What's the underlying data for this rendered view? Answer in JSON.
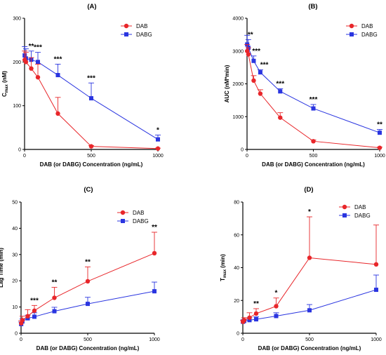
{
  "colors": {
    "DAB": "#e8262a",
    "DABG": "#2a35e0"
  },
  "chart_data": [
    {
      "panel": "(A)",
      "type": "line",
      "ylabel_main": "C",
      "ylabel_sub": "max",
      "ylabel_unit": " (nM)",
      "xlabel": "DAB (or DABG) Concentration (ng/mL)",
      "xlim": [
        0,
        1000
      ],
      "ylim": [
        0,
        300
      ],
      "xticks": [
        0,
        500,
        1000
      ],
      "yticks": [
        0,
        100,
        200,
        300
      ],
      "legend": "top-right",
      "series": [
        {
          "name": "DAB",
          "marker": "circle",
          "x": [
            1,
            10,
            50,
            100,
            250,
            500,
            1000
          ],
          "y": [
            205,
            200,
            185,
            165,
            82,
            7,
            2
          ],
          "err": [
            20,
            22,
            25,
            30,
            37,
            2,
            1
          ]
        },
        {
          "name": "DABG",
          "marker": "square",
          "x": [
            1,
            10,
            50,
            100,
            250,
            500,
            1000
          ],
          "y": [
            215,
            208,
            205,
            200,
            170,
            117,
            23
          ],
          "err": [
            20,
            22,
            20,
            22,
            25,
            35,
            10
          ]
        }
      ],
      "annotations": [
        {
          "x": 50,
          "text": "**"
        },
        {
          "x": 100,
          "text": "***"
        },
        {
          "x": 250,
          "text": "***"
        },
        {
          "x": 500,
          "text": "***"
        },
        {
          "x": 1000,
          "text": "*"
        }
      ]
    },
    {
      "panel": "(B)",
      "type": "line",
      "ylabel_main": "AUC (nM*min)",
      "ylabel_sub": "",
      "ylabel_unit": "",
      "xlabel": "DAB (or DABG) Concentration (ng/mL)",
      "xlim": [
        0,
        1000
      ],
      "ylim": [
        0,
        4000
      ],
      "xticks": [
        0,
        500,
        1000
      ],
      "yticks": [
        0,
        1000,
        2000,
        3000,
        4000
      ],
      "legend": "top-right",
      "series": [
        {
          "name": "DAB",
          "marker": "circle",
          "x": [
            1,
            10,
            50,
            100,
            250,
            500,
            1000
          ],
          "y": [
            3000,
            2900,
            2100,
            1700,
            970,
            250,
            50
          ],
          "err": [
            200,
            200,
            150,
            120,
            150,
            40,
            20
          ]
        },
        {
          "name": "DABG",
          "marker": "square",
          "x": [
            1,
            10,
            50,
            100,
            250,
            500,
            1000
          ],
          "y": [
            3200,
            3100,
            2700,
            2350,
            1770,
            1250,
            510
          ],
          "err": [
            280,
            250,
            150,
            80,
            80,
            120,
            100
          ]
        }
      ],
      "annotations": [
        {
          "x": 25,
          "text": "**"
        },
        {
          "x": 70,
          "text": "***"
        },
        {
          "x": 130,
          "text": "***"
        },
        {
          "x": 250,
          "text": "***"
        },
        {
          "x": 500,
          "text": "***"
        },
        {
          "x": 1000,
          "text": "**"
        }
      ]
    },
    {
      "panel": "(C)",
      "type": "line",
      "ylabel_main": "Lag Time (min)",
      "ylabel_sub": "",
      "ylabel_unit": "",
      "xlabel": "DAB (or DABG) Concentration (ng/mL)",
      "xlim": [
        0,
        1000
      ],
      "ylim": [
        0,
        50
      ],
      "xticks": [
        0,
        500,
        1000
      ],
      "yticks": [
        0,
        10,
        20,
        30,
        40,
        50
      ],
      "legend": "top-right",
      "series": [
        {
          "name": "DAB",
          "marker": "circle",
          "x": [
            1,
            10,
            50,
            100,
            250,
            500,
            1000
          ],
          "y": [
            3.8,
            5,
            6.5,
            8.6,
            13.5,
            19.8,
            30.5
          ],
          "err": [
            1,
            1.5,
            2.5,
            2,
            4,
            5.5,
            8
          ]
        },
        {
          "name": "DABG",
          "marker": "square",
          "x": [
            1,
            10,
            50,
            100,
            250,
            500,
            1000
          ],
          "y": [
            3.5,
            4.5,
            5.7,
            6.3,
            8.4,
            11.2,
            16
          ],
          "err": [
            0.8,
            1,
            1.2,
            1.5,
            1.5,
            2.5,
            3.5
          ]
        }
      ],
      "annotations": [
        {
          "x": 100,
          "text": "***"
        },
        {
          "x": 250,
          "text": "**"
        },
        {
          "x": 500,
          "text": "**"
        },
        {
          "x": 1000,
          "text": "**"
        }
      ]
    },
    {
      "panel": "(D)",
      "type": "line",
      "ylabel_main": "T",
      "ylabel_sub": "max",
      "ylabel_unit": " (min)",
      "xlabel": "DAB (or DABG) Concentration (ng/mL)",
      "xlim": [
        0,
        1000
      ],
      "ylim": [
        0,
        80
      ],
      "xticks": [
        0,
        500,
        1000
      ],
      "yticks": [
        0,
        20,
        40,
        60,
        80
      ],
      "legend": "top-right",
      "series": [
        {
          "name": "DAB",
          "marker": "circle",
          "x": [
            1,
            10,
            50,
            100,
            250,
            500,
            1000
          ],
          "y": [
            7,
            8,
            9.5,
            12,
            16.5,
            46,
            42
          ],
          "err": [
            1,
            1.5,
            3,
            3,
            5,
            25,
            24
          ]
        },
        {
          "name": "DABG",
          "marker": "square",
          "x": [
            1,
            10,
            50,
            100,
            250,
            500,
            1000
          ],
          "y": [
            7,
            7.5,
            8,
            8.5,
            10.5,
            14,
            26.5
          ],
          "err": [
            1,
            1,
            1.5,
            1.5,
            2,
            3.5,
            9
          ]
        }
      ],
      "annotations": [
        {
          "x": 100,
          "text": "**"
        },
        {
          "x": 250,
          "text": "*"
        },
        {
          "x": 500,
          "text": "*"
        }
      ]
    }
  ]
}
